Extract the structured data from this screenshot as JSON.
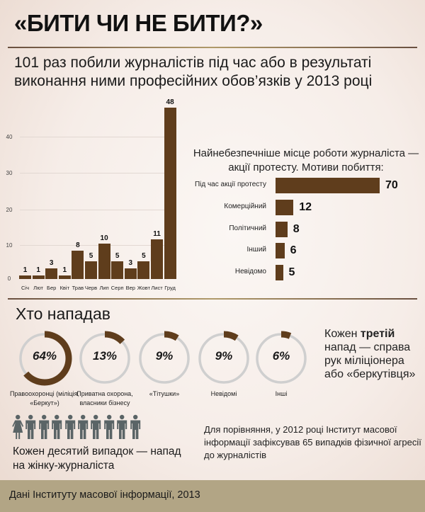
{
  "header": {
    "title": "«БИТИ ЧИ НЕ БИТИ?»",
    "subtitle": "101 раз побили журналістів під час або в результаті виконання ними професійних обов’язків у 2013 році"
  },
  "colors": {
    "bar": "#5f3d1c",
    "ring_track": "#cfcfcf",
    "people": "#5a6466",
    "footer": "#b2a585",
    "divider": "#6a5040"
  },
  "monthly_chart": {
    "yticks": [
      "0",
      "10",
      "20",
      "30",
      "40"
    ],
    "months": [
      "Січ",
      "Лют",
      "Бер",
      "Квіт",
      "Трав",
      "Черв",
      "Лип",
      "Серп",
      "Вер",
      "Жовт",
      "Лист",
      "Груд"
    ],
    "values": [
      "1",
      "1",
      "3",
      "1",
      "8",
      "5",
      "10",
      "5",
      "3",
      "5",
      "11",
      "48"
    ]
  },
  "motives": {
    "heading": "Найнебезпечніше місце роботи журналіста — акції протесту. Мотиви побиття:",
    "items": [
      {
        "label": "Під час акції протесту",
        "value": "70"
      },
      {
        "label": "Комерційний",
        "value": "12"
      },
      {
        "label": "Політичний",
        "value": "8"
      },
      {
        "label": "Інший",
        "value": "6"
      },
      {
        "label": "Невідомо",
        "value": "5"
      }
    ]
  },
  "attackers": {
    "heading": "Хто нападав",
    "items": [
      {
        "pct": "64%",
        "label": "Правоохоронці (міліція, «Беркут»)"
      },
      {
        "pct": "13%",
        "label": "Приватна охорона, власники бізнесу"
      },
      {
        "pct": "9%",
        "label": "«Тітушки»"
      },
      {
        "pct": "9%",
        "label": "Невідомі"
      },
      {
        "pct": "6%",
        "label": "Інші"
      }
    ],
    "note_prefix": "Кожен ",
    "note_bold": "третій",
    "note_suffix": " напад — справа рук міліціонера або «беркутівця»"
  },
  "women": {
    "text": "Кожен десятий випадок — напад на жінку-журналіста",
    "icons": [
      "woman-icon",
      "man-icon",
      "man-icon",
      "man-icon",
      "man-icon",
      "man-icon",
      "man-icon",
      "man-icon",
      "man-icon",
      "man-icon"
    ]
  },
  "comparison": {
    "text": "Для порівняння, у 2012 році Інститут масової інформації зафіксував 65 випадків фізичної агресії до журналістів"
  },
  "footer": {
    "source": "Дані Інституту масової інформації, 2013"
  },
  "chart_data": [
    {
      "type": "bar",
      "title": "101 раз побили журналістів під час або в результаті виконання ними професійних обов’язків у 2013 році",
      "categories": [
        "Січ",
        "Лют",
        "Бер",
        "Квіт",
        "Трав",
        "Черв",
        "Лип",
        "Серп",
        "Вер",
        "Жовт",
        "Лист",
        "Груд"
      ],
      "values": [
        1,
        1,
        3,
        1,
        8,
        5,
        10,
        5,
        3,
        5,
        11,
        48
      ],
      "xlabel": "",
      "ylabel": "",
      "yticks": [
        0,
        10,
        20,
        30,
        40
      ],
      "ylim": [
        0,
        50
      ],
      "grid": true
    },
    {
      "type": "bar",
      "orientation": "horizontal",
      "title": "Найнебезпечніше місце роботи журналіста — акції протесту. Мотиви побиття:",
      "categories": [
        "Під час акції протесту",
        "Комерційний",
        "Політичний",
        "Інший",
        "Невідомо"
      ],
      "values": [
        70,
        12,
        8,
        6,
        5
      ]
    },
    {
      "type": "pie",
      "style": "donut-rings",
      "title": "Хто нападав",
      "categories": [
        "Правоохоронці (міліція, «Беркут»)",
        "Приватна охорона, власники бізнесу",
        "«Тітушки»",
        "Невідомі",
        "Інші"
      ],
      "values": [
        64,
        13,
        9,
        9,
        6
      ],
      "unit": "%"
    }
  ]
}
